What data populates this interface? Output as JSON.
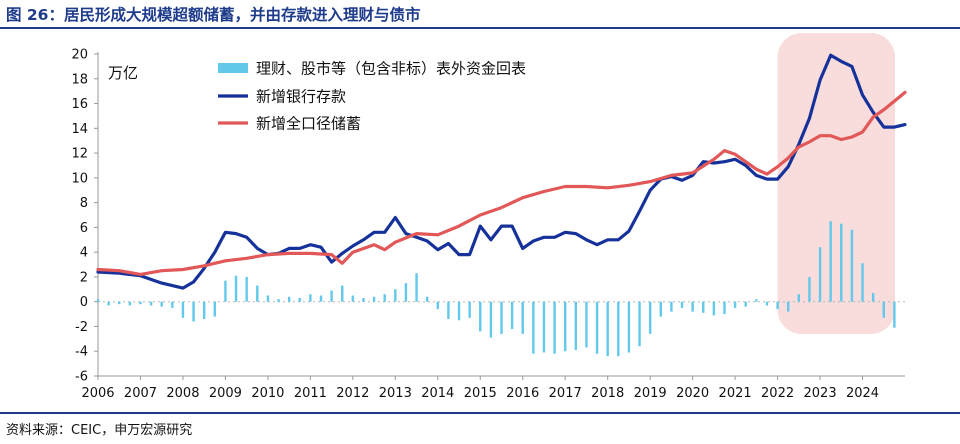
{
  "figure_title": "图 26：居民形成大规模超额储蓄，并由存款进入理财与债市",
  "source": "资料来源：CEIC，申万宏源研究",
  "colors": {
    "title": "#1f3c8c",
    "bars": "#62c8ec",
    "deposits": "#16329a",
    "savings": "#e25757",
    "highlight": "#f9dcdc"
  },
  "chart_data": {
    "type": "bar+line",
    "unit_label": "万亿",
    "ylim": [
      -6,
      20
    ],
    "yticks": [
      -6,
      -4,
      -2,
      0,
      2,
      4,
      6,
      8,
      10,
      12,
      14,
      16,
      18,
      20
    ],
    "xlim": [
      2006.0,
      2025.0
    ],
    "xticks": [
      2006,
      2007,
      2008,
      2009,
      2010,
      2011,
      2012,
      2013,
      2014,
      2015,
      2016,
      2017,
      2018,
      2019,
      2020,
      2021,
      2022,
      2023,
      2024
    ],
    "grid": false,
    "legend_position": "top-left",
    "highlight_period": [
      2022.0,
      2025.0
    ],
    "series": [
      {
        "name": "理财、股市等（包含非标）表外资金回表",
        "type": "bar",
        "x": [
          2006.0,
          2006.25,
          2006.5,
          2006.75,
          2007.0,
          2007.25,
          2007.5,
          2007.75,
          2008.0,
          2008.25,
          2008.5,
          2008.75,
          2009.0,
          2009.25,
          2009.5,
          2009.75,
          2010.0,
          2010.25,
          2010.5,
          2010.75,
          2011.0,
          2011.25,
          2011.5,
          2011.75,
          2012.0,
          2012.25,
          2012.5,
          2012.75,
          2013.0,
          2013.25,
          2013.5,
          2013.75,
          2014.0,
          2014.25,
          2014.5,
          2014.75,
          2015.0,
          2015.25,
          2015.5,
          2015.75,
          2016.0,
          2016.25,
          2016.5,
          2016.75,
          2017.0,
          2017.25,
          2017.5,
          2017.75,
          2018.0,
          2018.25,
          2018.5,
          2018.75,
          2019.0,
          2019.25,
          2019.5,
          2019.75,
          2020.0,
          2020.25,
          2020.5,
          2020.75,
          2021.0,
          2021.25,
          2021.5,
          2021.75,
          2022.0,
          2022.25,
          2022.5,
          2022.75,
          2023.0,
          2023.25,
          2023.5,
          2023.75,
          2024.0,
          2024.25,
          2024.5,
          2024.75
        ],
        "values": [
          0.2,
          -0.3,
          -0.2,
          -0.3,
          -0.2,
          -0.3,
          -0.4,
          -0.5,
          -1.3,
          -1.6,
          -1.4,
          -1.2,
          1.7,
          2.1,
          2.0,
          1.3,
          0.5,
          0.2,
          0.4,
          0.3,
          0.6,
          0.5,
          0.9,
          1.3,
          0.5,
          0.3,
          0.4,
          0.6,
          1.0,
          1.5,
          2.3,
          0.4,
          -0.6,
          -1.4,
          -1.5,
          -1.3,
          -2.4,
          -2.9,
          -2.6,
          -2.2,
          -2.6,
          -4.2,
          -4.1,
          -4.2,
          -4.0,
          -3.9,
          -3.7,
          -4.2,
          -4.4,
          -4.4,
          -4.1,
          -3.6,
          -2.6,
          -1.2,
          -0.8,
          -0.5,
          -0.8,
          -0.9,
          -1.1,
          -1.0,
          -0.5,
          -0.4,
          0.2,
          -0.3,
          -0.6,
          -0.8,
          0.6,
          2.0,
          4.4,
          6.5,
          6.3,
          5.8,
          3.1,
          0.7,
          -1.3,
          -2.1
        ]
      },
      {
        "name": "新增银行存款",
        "type": "line",
        "x": [
          2006.0,
          2006.5,
          2007.0,
          2007.5,
          2008.0,
          2008.25,
          2008.5,
          2008.75,
          2009.0,
          2009.25,
          2009.5,
          2009.75,
          2010.0,
          2010.25,
          2010.5,
          2010.75,
          2011.0,
          2011.25,
          2011.5,
          2011.75,
          2012.0,
          2012.25,
          2012.5,
          2012.75,
          2013.0,
          2013.25,
          2013.5,
          2013.75,
          2014.0,
          2014.25,
          2014.5,
          2014.75,
          2015.0,
          2015.25,
          2015.5,
          2015.75,
          2016.0,
          2016.25,
          2016.5,
          2016.75,
          2017.0,
          2017.25,
          2017.5,
          2017.75,
          2018.0,
          2018.25,
          2018.5,
          2018.75,
          2019.0,
          2019.25,
          2019.5,
          2019.75,
          2020.0,
          2020.25,
          2020.5,
          2020.75,
          2021.0,
          2021.25,
          2021.5,
          2021.75,
          2022.0,
          2022.25,
          2022.5,
          2022.75,
          2023.0,
          2023.25,
          2023.5,
          2023.75,
          2024.0,
          2024.25,
          2024.5,
          2024.75,
          2025.0
        ],
        "values": [
          2.4,
          2.3,
          2.1,
          1.5,
          1.1,
          1.6,
          2.7,
          4.0,
          5.6,
          5.5,
          5.2,
          4.3,
          3.8,
          3.9,
          4.3,
          4.3,
          4.6,
          4.4,
          3.2,
          3.9,
          4.5,
          5.0,
          5.6,
          5.6,
          6.8,
          5.5,
          5.2,
          4.9,
          4.2,
          4.7,
          3.8,
          3.8,
          6.1,
          5.0,
          6.1,
          6.1,
          4.3,
          4.9,
          5.2,
          5.2,
          5.6,
          5.5,
          5.0,
          4.6,
          5.0,
          5.0,
          5.7,
          7.3,
          9.0,
          9.9,
          10.1,
          9.8,
          10.2,
          11.3,
          11.2,
          11.3,
          11.5,
          11.0,
          10.2,
          9.9,
          9.9,
          10.9,
          12.7,
          14.8,
          17.9,
          19.9,
          19.4,
          19.0,
          16.7,
          15.3,
          14.1,
          14.1,
          14.3
        ]
      },
      {
        "name": "新增全口径储蓄",
        "type": "line",
        "x": [
          2006.0,
          2006.5,
          2007.0,
          2007.5,
          2008.0,
          2008.5,
          2009.0,
          2009.5,
          2010.0,
          2010.5,
          2011.0,
          2011.5,
          2011.75,
          2012.0,
          2012.5,
          2012.75,
          2013.0,
          2013.5,
          2014.0,
          2014.5,
          2015.0,
          2015.5,
          2016.0,
          2016.5,
          2017.0,
          2017.5,
          2018.0,
          2018.5,
          2019.0,
          2019.5,
          2020.0,
          2020.5,
          2020.75,
          2021.0,
          2021.25,
          2021.5,
          2021.75,
          2022.0,
          2022.25,
          2022.5,
          2022.75,
          2023.0,
          2023.25,
          2023.5,
          2023.75,
          2024.0,
          2024.25,
          2024.5,
          2024.75,
          2025.0
        ],
        "values": [
          2.6,
          2.5,
          2.2,
          2.5,
          2.6,
          2.9,
          3.3,
          3.5,
          3.8,
          3.9,
          3.9,
          3.8,
          3.1,
          4.0,
          4.6,
          4.2,
          4.8,
          5.5,
          5.4,
          6.1,
          7.0,
          7.6,
          8.4,
          8.9,
          9.3,
          9.3,
          9.2,
          9.4,
          9.7,
          10.2,
          10.4,
          11.5,
          12.2,
          11.9,
          11.3,
          10.7,
          10.3,
          10.9,
          11.6,
          12.5,
          12.9,
          13.4,
          13.4,
          13.1,
          13.3,
          13.7,
          14.9,
          15.5,
          16.2,
          16.9
        ]
      }
    ]
  }
}
